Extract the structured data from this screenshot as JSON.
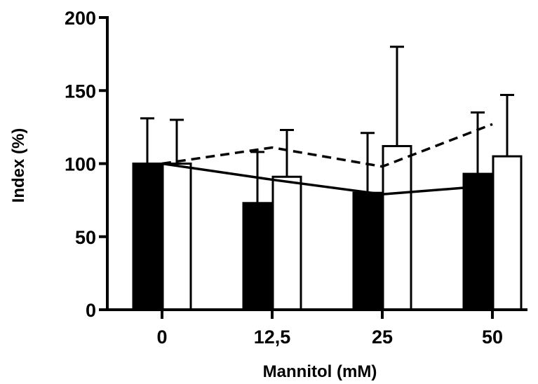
{
  "chart_data": {
    "type": "bar",
    "title": "",
    "xlabel": "Mannitol (mM)",
    "ylabel": "Index (%)",
    "ylim": [
      0,
      200
    ],
    "yticks": [
      0,
      50,
      100,
      150,
      200
    ],
    "categories": [
      "0",
      "12,5",
      "25",
      "50"
    ],
    "grid": false,
    "series": [
      {
        "fill": "#000000",
        "values": [
          100,
          73,
          80,
          93
        ],
        "error_upper": [
          131,
          108,
          121,
          135
        ]
      },
      {
        "fill": "#ffffff",
        "values": [
          100,
          91,
          112,
          105
        ],
        "error_upper": [
          130,
          123,
          180,
          147
        ]
      }
    ],
    "lines": [
      {
        "style": "solid",
        "values": [
          100,
          89,
          79,
          85
        ]
      },
      {
        "style": "dashed",
        "values": [
          100,
          111,
          98,
          127
        ]
      }
    ]
  }
}
